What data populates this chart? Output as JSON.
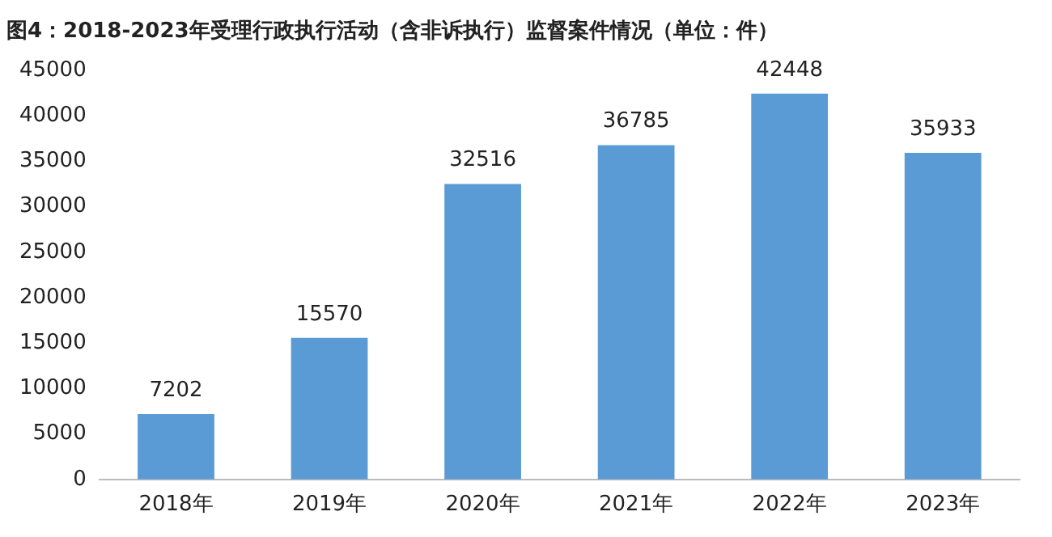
{
  "chart_data": {
    "type": "bar",
    "title": "图4：2018-2023年受理行政执行活动（含非诉执行）监督案件情况（单位：件）",
    "categories": [
      "2018年",
      "2019年",
      "2020年",
      "2021年",
      "2022年",
      "2023年"
    ],
    "values": [
      7202,
      15570,
      32516,
      36785,
      42448,
      35933
    ],
    "color": "#5b9bd5",
    "ylim": [
      0,
      45000
    ],
    "yticks": [
      0,
      5000,
      10000,
      15000,
      20000,
      25000,
      30000,
      35000,
      40000,
      45000
    ],
    "grid": false,
    "legend": false,
    "data_labels": true
  }
}
